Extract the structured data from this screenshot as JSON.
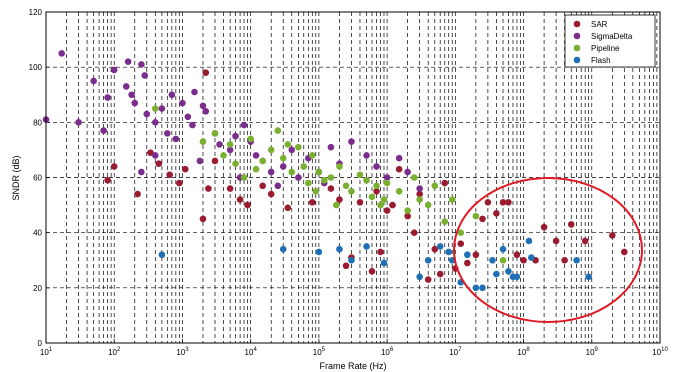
{
  "chart_data": {
    "type": "scatter",
    "title": "",
    "xlabel": "Frame Rate (Hz)",
    "ylabel": "SNDR (dB)",
    "x_scale": "log",
    "x_exponent_range": [
      1,
      10
    ],
    "x_ticks": [
      {
        "base": "10",
        "exp": "1"
      },
      {
        "base": "10",
        "exp": "2"
      },
      {
        "base": "10",
        "exp": "3"
      },
      {
        "base": "10",
        "exp": "4"
      },
      {
        "base": "10",
        "exp": "5"
      },
      {
        "base": "10",
        "exp": "6"
      },
      {
        "base": "10",
        "exp": "7"
      },
      {
        "base": "10",
        "exp": "8"
      },
      {
        "base": "10",
        "exp": "9"
      },
      {
        "base": "10",
        "exp": "10"
      }
    ],
    "ylim": [
      0,
      120
    ],
    "y_ticks": [
      "0",
      "20",
      "40",
      "60",
      "80",
      "100",
      "120"
    ],
    "grid": "dashed, including minor log gridlines",
    "legend_position": "top-right",
    "annotation": "red ellipse highlighting frame rates above 10^7 Hz with SNDR 20-55 dB",
    "series": [
      {
        "name": "SAR",
        "color": "#9b1b30",
        "points": [
          [
            80,
            59
          ],
          [
            100,
            64
          ],
          [
            220,
            54
          ],
          [
            340,
            69
          ],
          [
            450,
            65
          ],
          [
            650,
            61
          ],
          [
            900,
            58
          ],
          [
            1100,
            63
          ],
          [
            2000,
            45
          ],
          [
            2200,
            98
          ],
          [
            2400,
            56
          ],
          [
            3000,
            66
          ],
          [
            5000,
            56
          ],
          [
            7000,
            52
          ],
          [
            9000,
            50
          ],
          [
            15000,
            57
          ],
          [
            20000,
            54
          ],
          [
            35000,
            49
          ],
          [
            80000,
            51
          ],
          [
            150000,
            56
          ],
          [
            200000,
            52
          ],
          [
            250000,
            28
          ],
          [
            300000,
            31
          ],
          [
            400000,
            51
          ],
          [
            600000,
            26
          ],
          [
            700000,
            55
          ],
          [
            800000,
            33
          ],
          [
            1000000,
            48
          ],
          [
            1200000,
            50
          ],
          [
            1500000,
            63
          ],
          [
            2000000,
            46
          ],
          [
            2500000,
            40
          ],
          [
            3000000,
            54
          ],
          [
            4000000,
            23
          ],
          [
            5000000,
            34
          ],
          [
            6000000,
            25
          ],
          [
            7000000,
            58
          ],
          [
            10000000,
            27
          ],
          [
            12000000,
            36
          ],
          [
            15000000,
            29
          ],
          [
            20000000,
            32
          ],
          [
            25000000,
            45
          ],
          [
            30000000,
            51
          ],
          [
            40000000,
            47
          ],
          [
            50000000,
            51
          ],
          [
            60000000,
            51
          ],
          [
            80000000,
            32
          ],
          [
            100000000,
            30
          ],
          [
            150000000,
            30
          ],
          [
            200000000,
            42
          ],
          [
            300000000,
            37
          ],
          [
            400000000,
            30
          ],
          [
            500000000,
            43
          ],
          [
            800000000,
            37
          ],
          [
            2000000000,
            39
          ],
          [
            3000000000,
            33
          ]
        ]
      },
      {
        "name": "SigmaDelta",
        "color": "#7b2d8e",
        "points": [
          [
            10,
            81
          ],
          [
            17,
            105
          ],
          [
            30,
            80
          ],
          [
            50,
            95
          ],
          [
            70,
            77
          ],
          [
            80,
            89
          ],
          [
            100,
            99
          ],
          [
            150,
            93
          ],
          [
            160,
            102
          ],
          [
            180,
            90
          ],
          [
            200,
            87
          ],
          [
            250,
            101
          ],
          [
            280,
            97
          ],
          [
            300,
            83
          ],
          [
            400,
            80
          ],
          [
            500,
            85
          ],
          [
            600,
            76
          ],
          [
            700,
            90
          ],
          [
            800,
            74
          ],
          [
            1000,
            87
          ],
          [
            1200,
            82
          ],
          [
            1400,
            79
          ],
          [
            1500,
            91
          ],
          [
            2000,
            86
          ],
          [
            2200,
            84
          ],
          [
            3000,
            76
          ],
          [
            3500,
            72
          ],
          [
            5000,
            70
          ],
          [
            6000,
            75
          ],
          [
            8000,
            79
          ],
          [
            10000,
            73
          ],
          [
            12000,
            68
          ],
          [
            15000,
            66
          ],
          [
            20000,
            62
          ],
          [
            30000,
            64
          ],
          [
            40000,
            70
          ],
          [
            50000,
            60
          ],
          [
            70000,
            67
          ],
          [
            100000,
            62
          ],
          [
            120000,
            58
          ],
          [
            150000,
            71
          ],
          [
            200000,
            65
          ],
          [
            300000,
            73
          ],
          [
            500000,
            68
          ],
          [
            700000,
            64
          ],
          [
            1000000,
            60
          ],
          [
            1500000,
            67
          ],
          [
            2000000,
            62
          ],
          [
            3000000,
            56
          ],
          [
            400,
            68
          ],
          [
            250,
            62
          ],
          [
            1800,
            66
          ],
          [
            7000,
            60
          ],
          [
            25000,
            57
          ]
        ]
      },
      {
        "name": "Pipeline",
        "color": "#7ab030",
        "points": [
          [
            400,
            85
          ],
          [
            2000,
            73
          ],
          [
            3000,
            76
          ],
          [
            4000,
            68
          ],
          [
            5000,
            72
          ],
          [
            6000,
            65
          ],
          [
            8000,
            60
          ],
          [
            10000,
            74
          ],
          [
            15000,
            66
          ],
          [
            20000,
            70
          ],
          [
            25000,
            77
          ],
          [
            30000,
            67
          ],
          [
            40000,
            62
          ],
          [
            50000,
            71
          ],
          [
            60000,
            64
          ],
          [
            70000,
            58
          ],
          [
            80000,
            68
          ],
          [
            90000,
            55
          ],
          [
            100000,
            62
          ],
          [
            120000,
            59
          ],
          [
            150000,
            60
          ],
          [
            200000,
            64
          ],
          [
            250000,
            57
          ],
          [
            300000,
            55
          ],
          [
            400000,
            61
          ],
          [
            500000,
            59
          ],
          [
            600000,
            53
          ],
          [
            700000,
            57
          ],
          [
            800000,
            50
          ],
          [
            1000000,
            58
          ],
          [
            1500000,
            55
          ],
          [
            2000000,
            48
          ],
          [
            3000000,
            52
          ],
          [
            4000000,
            50
          ],
          [
            5000000,
            57
          ],
          [
            7000000,
            44
          ],
          [
            9000000,
            52
          ],
          [
            12000000,
            40
          ],
          [
            20000000,
            46
          ],
          [
            50000000,
            30
          ],
          [
            35000,
            72
          ],
          [
            12000,
            63
          ],
          [
            180000,
            50
          ],
          [
            900000,
            52
          ],
          [
            2500000,
            60
          ]
        ]
      },
      {
        "name": "Flash",
        "color": "#1f6fb5",
        "points": [
          [
            500,
            32
          ],
          [
            30000,
            34
          ],
          [
            100000,
            33
          ],
          [
            200000,
            34
          ],
          [
            300000,
            30
          ],
          [
            500000,
            35
          ],
          [
            900000,
            29
          ],
          [
            4000000,
            30
          ],
          [
            6000000,
            35
          ],
          [
            8000000,
            33
          ],
          [
            9000000,
            30
          ],
          [
            15000000,
            32
          ],
          [
            20000000,
            20
          ],
          [
            25000000,
            20
          ],
          [
            35000000,
            30
          ],
          [
            40000000,
            25
          ],
          [
            50000000,
            34
          ],
          [
            60000000,
            26
          ],
          [
            70000000,
            24
          ],
          [
            80000000,
            24
          ],
          [
            120000000,
            37
          ],
          [
            130000000,
            31
          ],
          [
            600000000,
            30
          ],
          [
            900000000,
            24
          ],
          [
            12000000,
            22
          ],
          [
            3000000,
            24
          ]
        ]
      }
    ]
  }
}
